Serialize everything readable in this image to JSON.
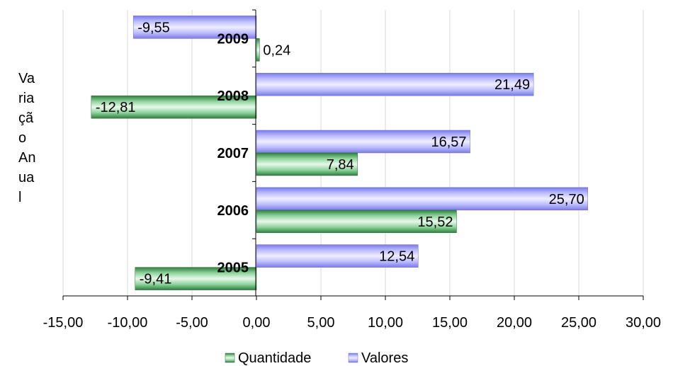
{
  "chart_data": {
    "type": "bar",
    "orientation": "horizontal",
    "categories": [
      "2005",
      "2006",
      "2007",
      "2008",
      "2009"
    ],
    "series": [
      {
        "name": "Quantidade",
        "values": [
          -9.41,
          15.52,
          7.84,
          -12.81,
          0.24
        ],
        "labels": [
          "-9,41",
          "15,52",
          "7,84",
          "-12,81",
          "0,24"
        ],
        "color": "#4a9e5c"
      },
      {
        "name": "Valores",
        "values": [
          12.54,
          25.7,
          16.57,
          21.49,
          -9.55
        ],
        "labels": [
          "12,54",
          "25,70",
          "16,57",
          "21,49",
          "-9,55"
        ],
        "color": "#9999ff"
      }
    ],
    "xlim": [
      -15,
      30
    ],
    "xticks": [
      -15,
      -10,
      -5,
      0,
      5,
      10,
      15,
      20,
      25,
      30
    ],
    "xtick_labels": [
      "-15,00",
      "-10,00",
      "-5,00",
      "0,00",
      "5,00",
      "10,00",
      "15,00",
      "20,00",
      "25,00",
      "30,00"
    ],
    "ylabel_lines": [
      "Va",
      "ria",
      "çã",
      "o",
      "An",
      "ua",
      "l"
    ],
    "grid": true,
    "legend_position": "bottom"
  }
}
